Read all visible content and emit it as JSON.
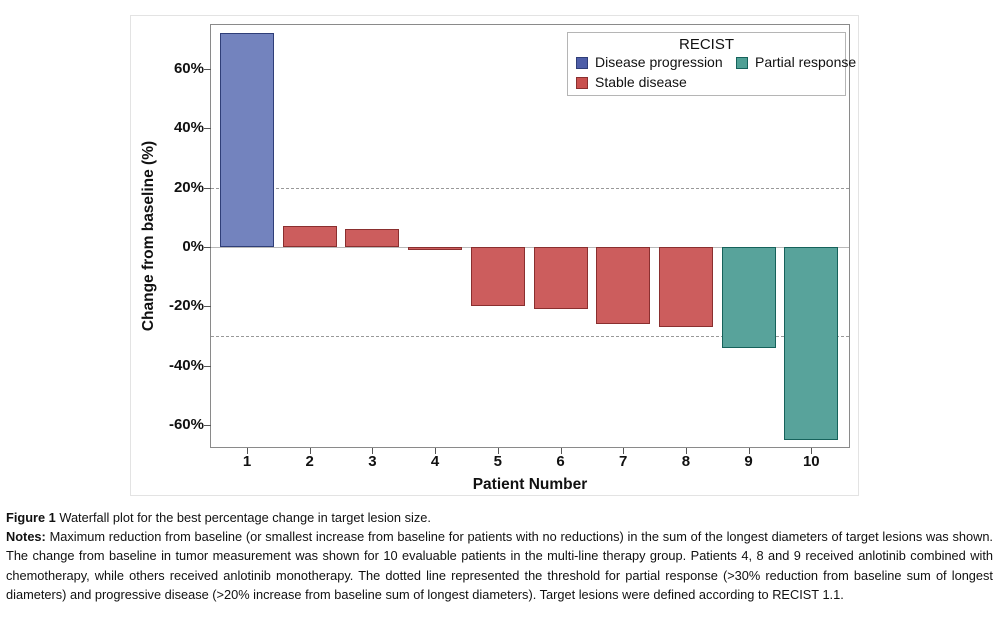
{
  "chart_data": {
    "type": "bar",
    "title": "",
    "categories": [
      "1",
      "2",
      "3",
      "4",
      "5",
      "6",
      "7",
      "8",
      "9",
      "10"
    ],
    "values": [
      72,
      7,
      6,
      -1,
      -20,
      -21,
      -26,
      -27,
      -34,
      -65
    ],
    "bar_classes": [
      "progression",
      "stable",
      "stable",
      "stable",
      "stable",
      "stable",
      "stable",
      "stable",
      "partial",
      "partial"
    ],
    "xlabel": "Patient Number",
    "ylabel": "Change from baseline (%)",
    "ylim": [
      -67,
      75
    ],
    "yticks": [
      60,
      40,
      20,
      0,
      -20,
      -40,
      -60
    ],
    "ytick_labels": [
      "60%",
      "40%",
      "20%",
      "0%",
      "-20%",
      "-40%",
      "-60%"
    ],
    "reference_lines": [
      20,
      -30
    ],
    "grid": false,
    "legend_position": "top-right",
    "legend": {
      "title": "RECIST",
      "entries": [
        {
          "label": "Disease progression",
          "class": "progression"
        },
        {
          "label": "Partial response",
          "class": "partial"
        },
        {
          "label": "Stable disease",
          "class": "stable"
        }
      ]
    },
    "colors": {
      "progression": {
        "fill": "#7383be",
        "stroke": "#2f3e78",
        "legend_fill": "#4e5ea8"
      },
      "stable": {
        "fill": "#cc5d5d",
        "stroke": "#8a2f2f",
        "legend_fill": "#c9504e"
      },
      "partial": {
        "fill": "#58a39b",
        "stroke": "#16625b",
        "legend_fill": "#4fa095"
      }
    }
  },
  "caption": {
    "figure_label": "Figure 1",
    "figure_text": " Waterfall plot for the best percentage change in target lesion size.",
    "notes_label": "Notes:",
    "notes_text": " Maximum reduction from baseline (or smallest increase from baseline for patients with no reductions) in the sum of the longest diameters of target lesions was shown. The change from baseline in tumor measurement was shown for 10 evaluable patients in the multi-line therapy group. Patients 4, 8 and 9 received anlotinib combined with chemotherapy, while others received anlotinib monotherapy. The dotted line represented the threshold for partial response (>30% reduction from baseline sum of longest diameters) and progressive disease (>20% increase from baseline sum of longest diameters). Target lesions were defined according to RECIST 1.1."
  }
}
